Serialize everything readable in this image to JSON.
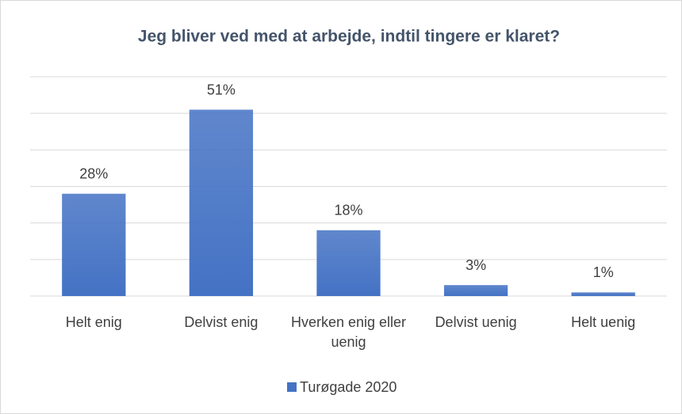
{
  "chart_data": {
    "type": "bar",
    "title": "Jeg bliver ved med at arbejde, indtil tingere er klaret?",
    "categories": [
      "Helt enig",
      "Delvist enig",
      "Hverken enig eller uenig",
      "Delvist uenig",
      "Helt uenig"
    ],
    "series": [
      {
        "name": "Turøgade 2020",
        "color": "#4472c4",
        "values": [
          28,
          51,
          18,
          3,
          1
        ],
        "value_labels": [
          "28%",
          "51%",
          "18%",
          "3%",
          "1%"
        ]
      }
    ],
    "ylim": [
      0,
      60
    ],
    "yticks": [
      0,
      10,
      20,
      30,
      40,
      50,
      60
    ],
    "grid": true,
    "legend": "bottom"
  }
}
